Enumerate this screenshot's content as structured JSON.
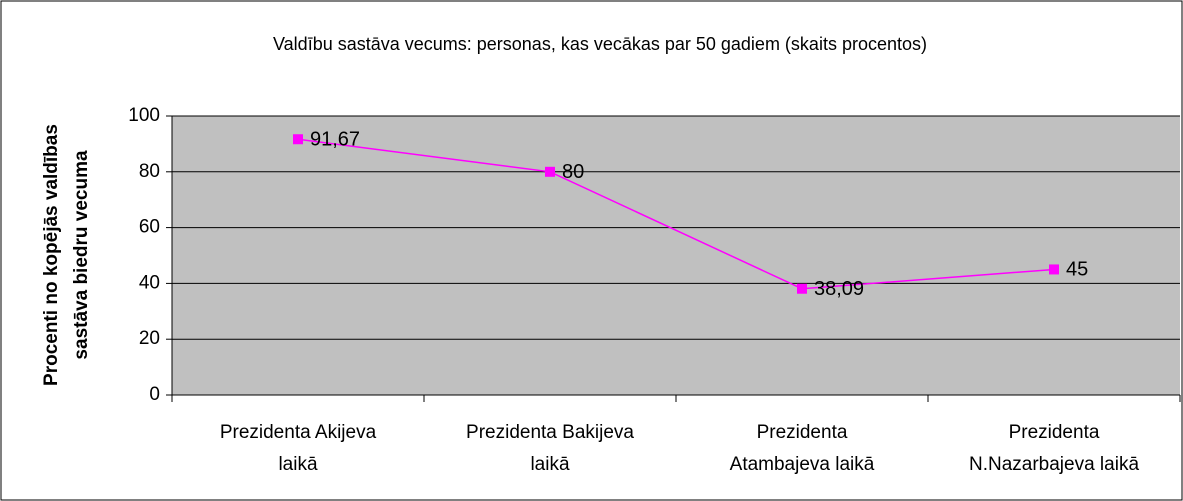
{
  "chart_data": {
    "type": "line",
    "title": "Valdību sastāva vecums: personas, kas vecākas par 50 gadiem (skaits procentos)",
    "y_label": [
      "Procenti no kopējās valdības",
      "sastāva biedru vecuma"
    ],
    "categories": [
      [
        "Prezidenta Akijeva",
        "laikā"
      ],
      [
        "Prezidenta Bakijeva",
        "laikā"
      ],
      [
        "Prezidenta",
        "Atambajeva laikā"
      ],
      [
        "Prezidenta",
        "N.Nazarbajeva laikā"
      ]
    ],
    "values": [
      91.67,
      80,
      38.09,
      45
    ],
    "value_labels": [
      "91,67",
      "80",
      "38,09",
      "45"
    ],
    "color": "#ff00ff",
    "ylim": [
      0,
      100
    ],
    "yticks": [
      0,
      20,
      40,
      60,
      80,
      100
    ],
    "grid": true
  }
}
